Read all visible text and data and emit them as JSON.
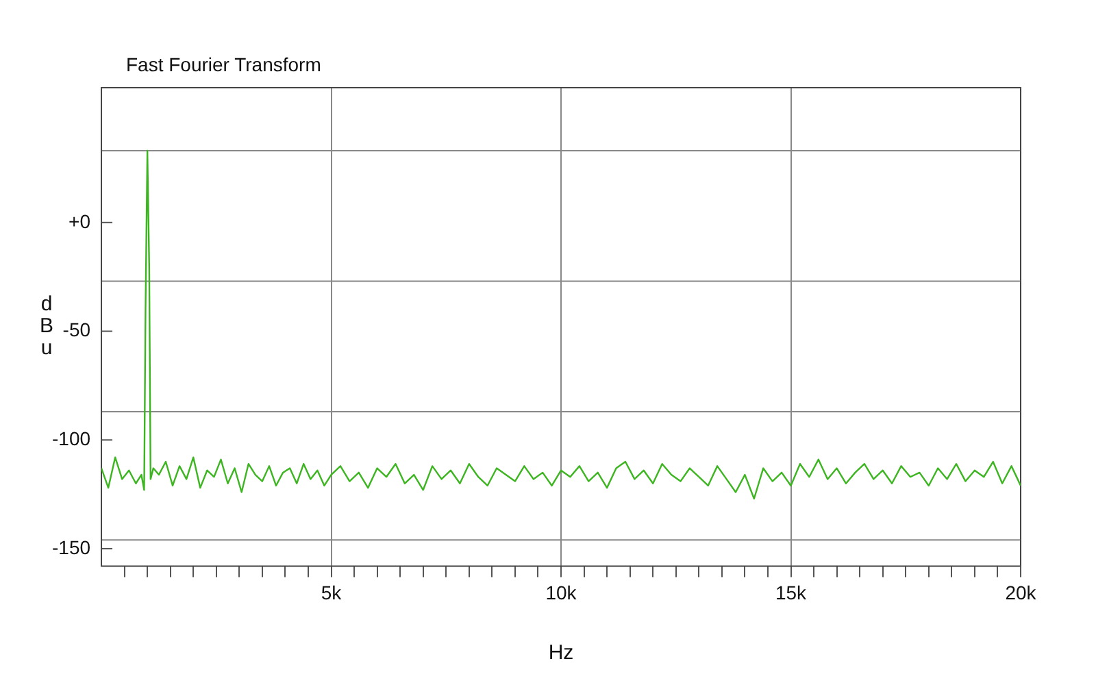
{
  "chart_data": {
    "type": "line",
    "title": "Fast Fourier Transform",
    "xlabel": "Hz",
    "ylabel": "dBu",
    "xlim": [
      0,
      20000
    ],
    "ylim": [
      -158,
      62
    ],
    "xticks": [
      {
        "value": 500,
        "label": null
      },
      {
        "value": 1000,
        "label": null
      },
      {
        "value": 1500,
        "label": null
      },
      {
        "value": 2000,
        "label": null
      },
      {
        "value": 2500,
        "label": null
      },
      {
        "value": 3000,
        "label": null
      },
      {
        "value": 3500,
        "label": null
      },
      {
        "value": 4000,
        "label": null
      },
      {
        "value": 4500,
        "label": null
      },
      {
        "value": 5000,
        "label": "5k"
      },
      {
        "value": 5500,
        "label": null
      },
      {
        "value": 6000,
        "label": null
      },
      {
        "value": 6500,
        "label": null
      },
      {
        "value": 7000,
        "label": null
      },
      {
        "value": 7500,
        "label": null
      },
      {
        "value": 8000,
        "label": null
      },
      {
        "value": 8500,
        "label": null
      },
      {
        "value": 9000,
        "label": null
      },
      {
        "value": 9500,
        "label": null
      },
      {
        "value": 10000,
        "label": "10k"
      },
      {
        "value": 10500,
        "label": null
      },
      {
        "value": 11000,
        "label": null
      },
      {
        "value": 11500,
        "label": null
      },
      {
        "value": 12000,
        "label": null
      },
      {
        "value": 12500,
        "label": null
      },
      {
        "value": 13000,
        "label": null
      },
      {
        "value": 13500,
        "label": null
      },
      {
        "value": 14000,
        "label": null
      },
      {
        "value": 14500,
        "label": null
      },
      {
        "value": 15000,
        "label": "15k"
      },
      {
        "value": 15500,
        "label": null
      },
      {
        "value": 16000,
        "label": null
      },
      {
        "value": 16500,
        "label": null
      },
      {
        "value": 17000,
        "label": null
      },
      {
        "value": 17500,
        "label": null
      },
      {
        "value": 18000,
        "label": null
      },
      {
        "value": 18500,
        "label": null
      },
      {
        "value": 19000,
        "label": null
      },
      {
        "value": 19500,
        "label": null
      },
      {
        "value": 20000,
        "label": "20k"
      }
    ],
    "yticks": [
      {
        "value": 0,
        "label": "+0"
      },
      -50,
      -100,
      -150
    ],
    "grid": "x",
    "marker": "none",
    "line_style": "solid",
    "ref_lines": [
      {
        "axis": "y",
        "value": 33,
        "color": "#888888"
      },
      {
        "axis": "y",
        "value": -27,
        "color": "#888888"
      },
      {
        "axis": "y",
        "value": -87,
        "color": "#888888"
      },
      {
        "axis": "y",
        "value": -146,
        "color": "#888888"
      }
    ],
    "series": [
      {
        "color": "#3cb521",
        "x": [
          0,
          150,
          300,
          450,
          600,
          750,
          870,
          930,
          960,
          1000,
          1040,
          1070,
          1130,
          1250,
          1400,
          1550,
          1700,
          1850,
          2000,
          2150,
          2300,
          2450,
          2600,
          2750,
          2900,
          3050,
          3200,
          3350,
          3500,
          3650,
          3800,
          3950,
          4100,
          4250,
          4400,
          4550,
          4700,
          4850,
          5000,
          5200,
          5400,
          5600,
          5800,
          6000,
          6200,
          6400,
          6600,
          6800,
          7000,
          7200,
          7400,
          7600,
          7800,
          8000,
          8200,
          8400,
          8600,
          8800,
          9000,
          9200,
          9400,
          9600,
          9800,
          10000,
          10200,
          10400,
          10600,
          10800,
          11000,
          11200,
          11400,
          11600,
          11800,
          12000,
          12200,
          12400,
          12600,
          12800,
          13000,
          13200,
          13400,
          13600,
          13800,
          14000,
          14200,
          14400,
          14600,
          14800,
          15000,
          15200,
          15400,
          15600,
          15800,
          16000,
          16200,
          16400,
          16600,
          16800,
          17000,
          17200,
          17400,
          17600,
          17800,
          18000,
          18200,
          18400,
          18600,
          18800,
          19000,
          19200,
          19400,
          19600,
          19800,
          20000
        ],
        "values": [
          -113,
          -122,
          -108,
          -118,
          -114,
          -120,
          -116,
          -123,
          -40,
          33,
          -20,
          -118,
          -113,
          -116,
          -110,
          -121,
          -112,
          -118,
          -108,
          -122,
          -114,
          -117,
          -109,
          -120,
          -113,
          -124,
          -111,
          -116,
          -119,
          -112,
          -121,
          -115,
          -113,
          -120,
          -111,
          -118,
          -114,
          -121,
          -116,
          -112,
          -119,
          -115,
          -122,
          -113,
          -117,
          -111,
          -120,
          -116,
          -123,
          -112,
          -118,
          -114,
          -120,
          -111,
          -117,
          -121,
          -113,
          -116,
          -119,
          -112,
          -118,
          -115,
          -121,
          -114,
          -117,
          -112,
          -119,
          -115,
          -122,
          -113,
          -110,
          -118,
          -114,
          -120,
          -111,
          -116,
          -119,
          -113,
          -117,
          -121,
          -112,
          -118,
          -124,
          -116,
          -127,
          -113,
          -119,
          -115,
          -121,
          -111,
          -117,
          -109,
          -118,
          -113,
          -120,
          -115,
          -111,
          -118,
          -114,
          -120,
          -112,
          -117,
          -115,
          -121,
          -113,
          -118,
          -111,
          -119,
          -114,
          -117,
          -110,
          -120,
          -112,
          -121
        ]
      }
    ]
  }
}
